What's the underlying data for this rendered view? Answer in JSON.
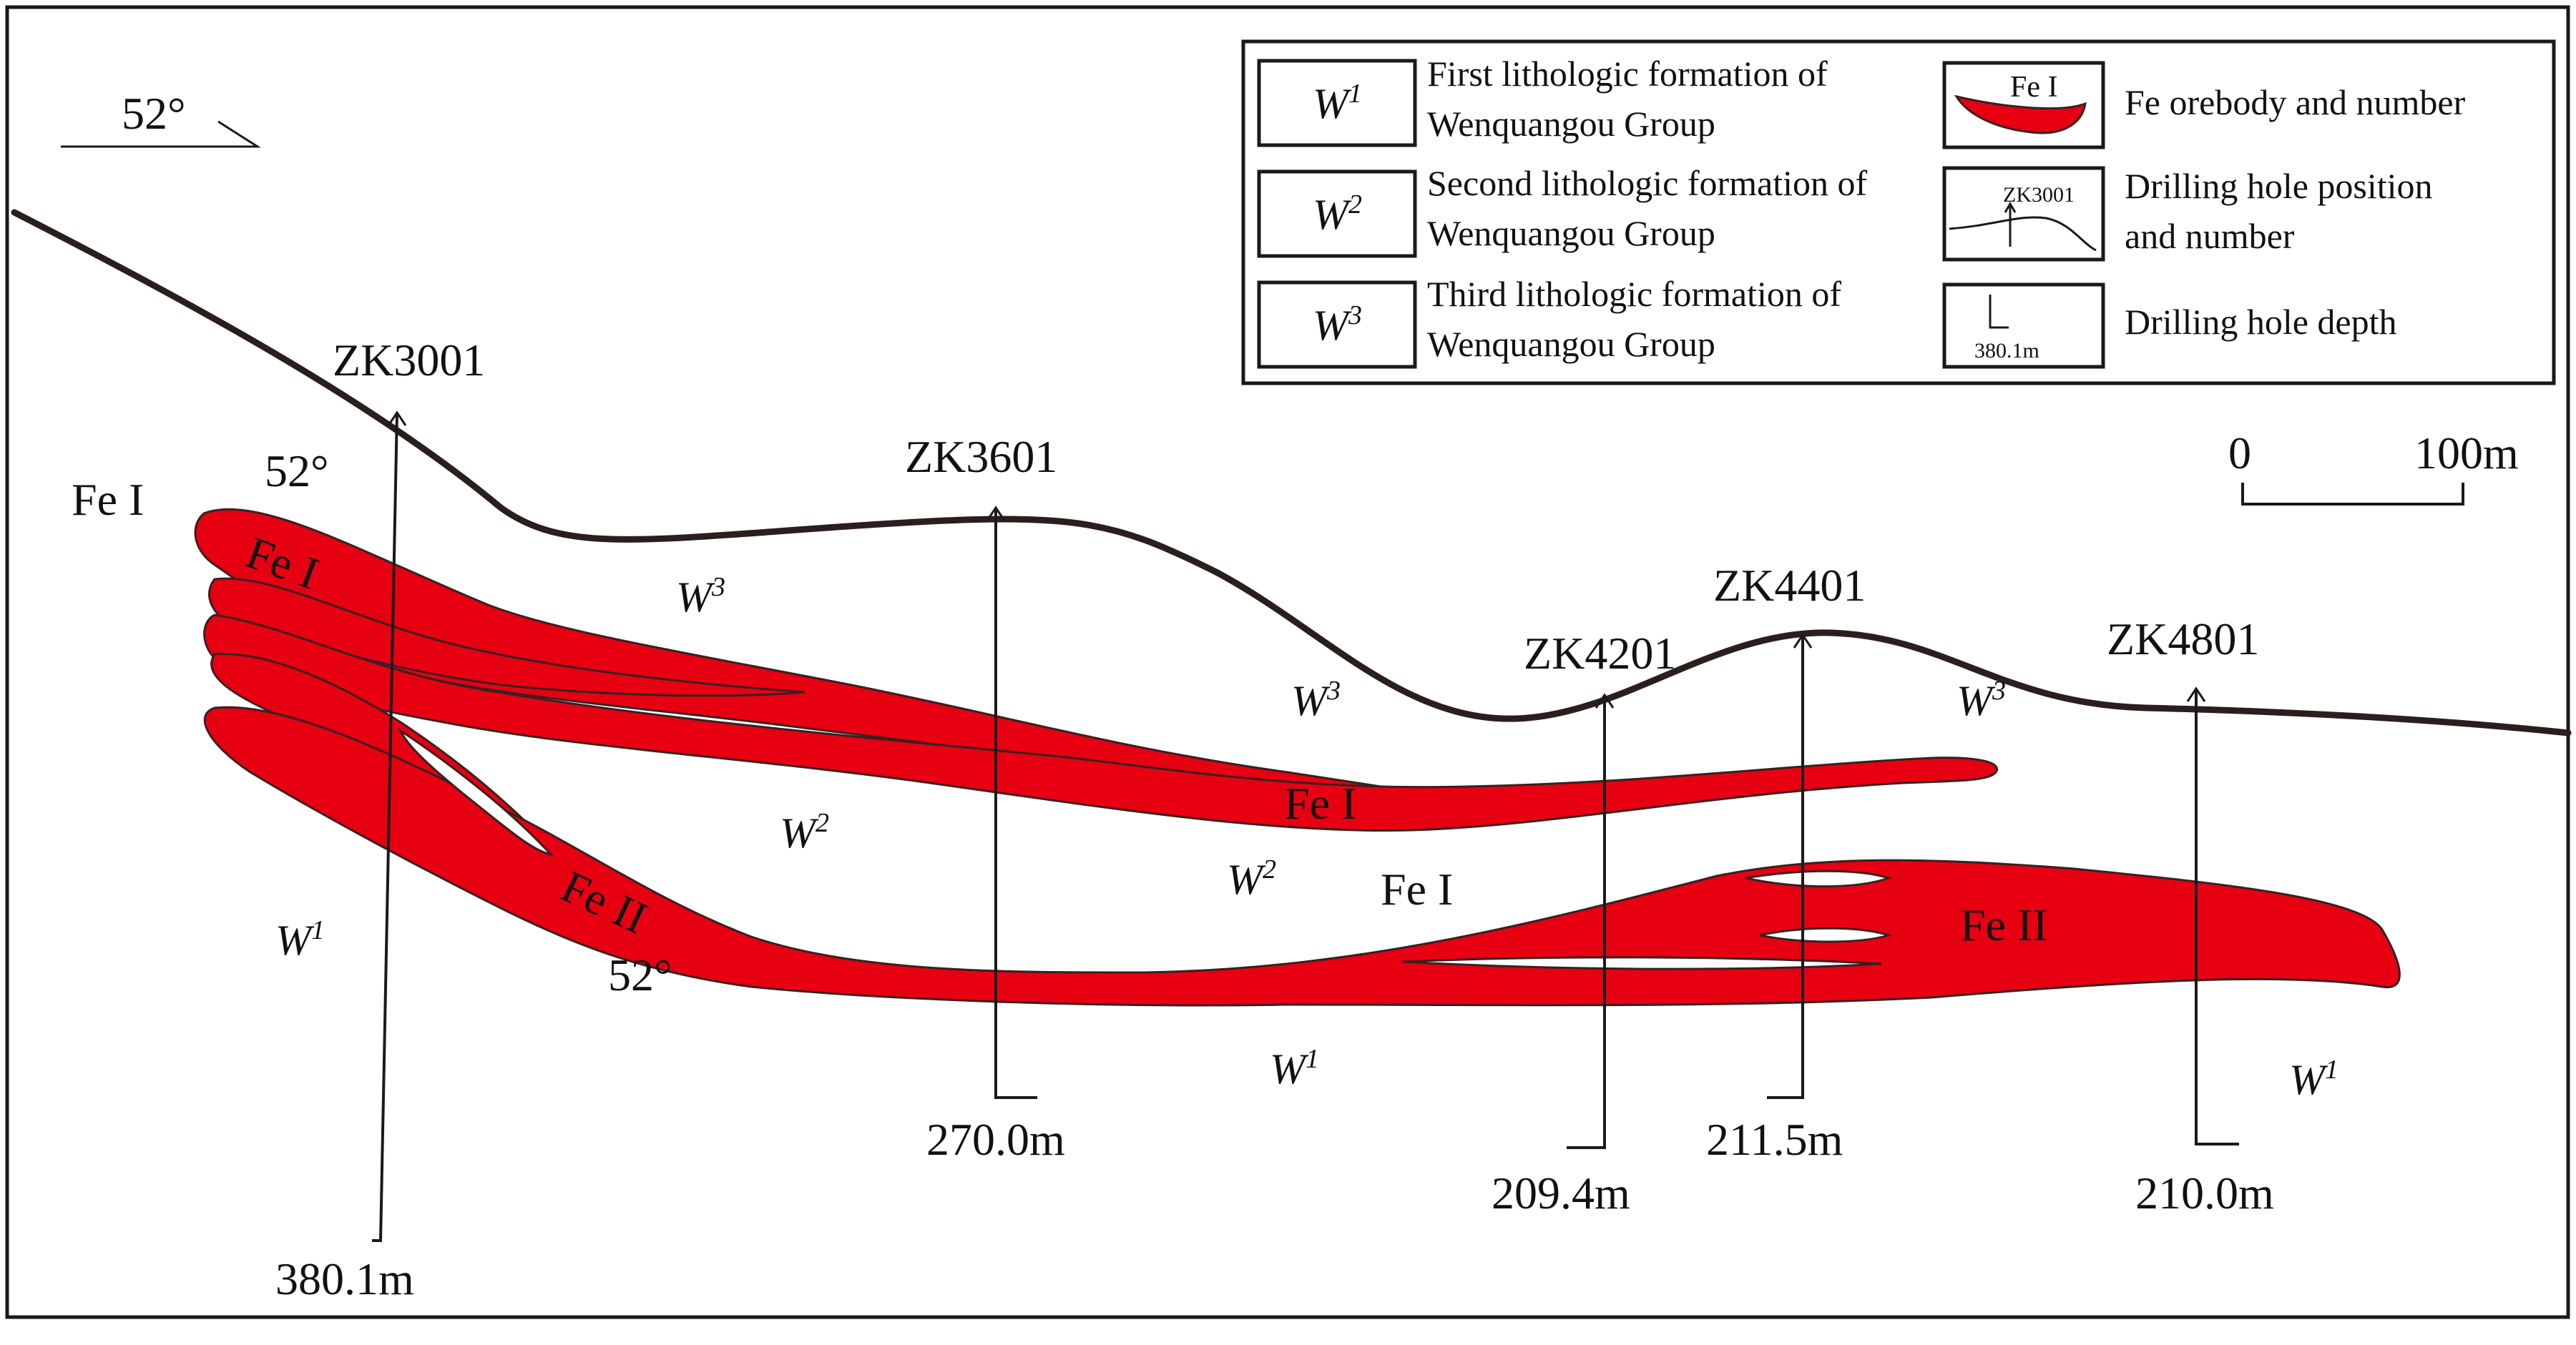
{
  "orientation": {
    "angle_label": "52°"
  },
  "legend": {
    "w1_symbol": "W",
    "w1_sup": "1",
    "w1_text_line1": "First lithologic formation of",
    "w1_text_line2": "Wenquangou Group",
    "w2_symbol": "W",
    "w2_sup": "2",
    "w2_text_line1": "Second lithologic formation of",
    "w2_text_line2": "Wenquangou Group",
    "w3_symbol": "W",
    "w3_sup": "3",
    "w3_text_line1": "Third lithologic formation of",
    "w3_text_line2": "Wenquangou Group",
    "orebody_sample_label": "Fe I",
    "orebody_text": "Fe orebody and number",
    "hole_sample_label": "ZK3001",
    "hole_text_line1": "Drilling hole position",
    "hole_text_line2": "and number",
    "depth_sample_label": "380.1m",
    "depth_text": "Drilling hole depth"
  },
  "scale_bar": {
    "start_label": "0",
    "end_label": "100m"
  },
  "drill_holes": [
    {
      "id": "ZK3001",
      "depth": "380.1m"
    },
    {
      "id": "ZK3601",
      "depth": "270.0m"
    },
    {
      "id": "ZK4201",
      "depth": "209.4m"
    },
    {
      "id": "ZK4401",
      "depth": "211.5m"
    },
    {
      "id": "ZK4801",
      "depth": "210.0m"
    }
  ],
  "orebody_labels": {
    "fe1_outside": "Fe I",
    "fe1_upper_left": "Fe I",
    "fe1_middle": "Fe I",
    "fe1_lower": "Fe I",
    "fe2_left": "Fe II",
    "fe2_right": "Fe II"
  },
  "dip_labels": {
    "upper": "52°",
    "lower": "52°"
  },
  "formation_labels": {
    "symbol": "W",
    "w3_a": "3",
    "w3_b": "3",
    "w3_c": "3",
    "w2_a": "2",
    "w2_b": "2",
    "w1_a": "1",
    "w1_b": "1",
    "w1_c": "1"
  },
  "colors": {
    "orebody": "#e60012",
    "line": "#1a1a1a",
    "terrain": "#2a1f1c"
  }
}
